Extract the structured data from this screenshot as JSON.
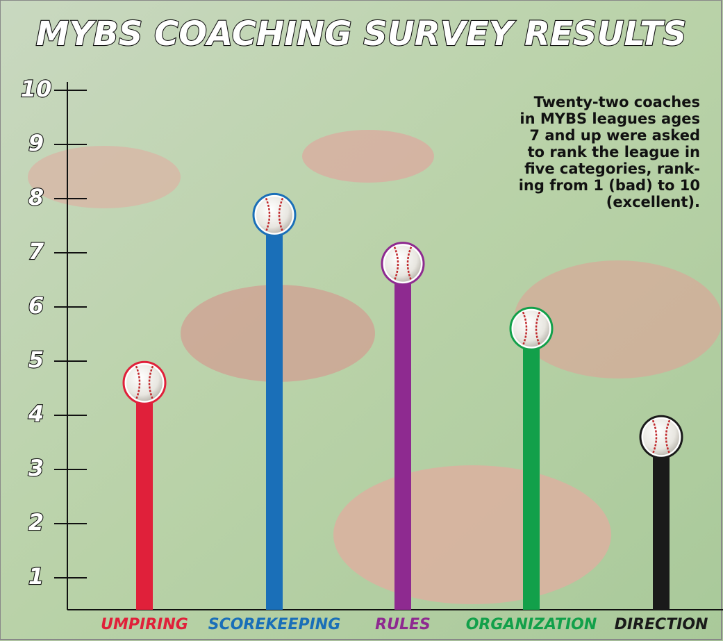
{
  "chart_data": {
    "type": "bar",
    "title": "MYBS COACHING SURVEY RESULTS",
    "annotation_lines": [
      "Twenty-two coaches",
      "in MYBS leagues ages",
      "7 and up were asked",
      "to rank the league in",
      "five categories, rank-",
      "ing from 1 (bad) to 10",
      "(excellent)."
    ],
    "categories": [
      "UMPIRING",
      "SCOREKEEPING",
      "RULES",
      "ORGANIZATION",
      "DIRECTION"
    ],
    "values": [
      4.6,
      7.7,
      6.8,
      5.6,
      3.6
    ],
    "colors": [
      "#e0203a",
      "#1a6fb8",
      "#8e2a90",
      "#12a04a",
      "#1a1a1a"
    ],
    "ylim": [
      0,
      10
    ],
    "yticks": [
      1,
      2,
      3,
      4,
      5,
      6,
      7,
      8,
      9,
      10
    ]
  }
}
